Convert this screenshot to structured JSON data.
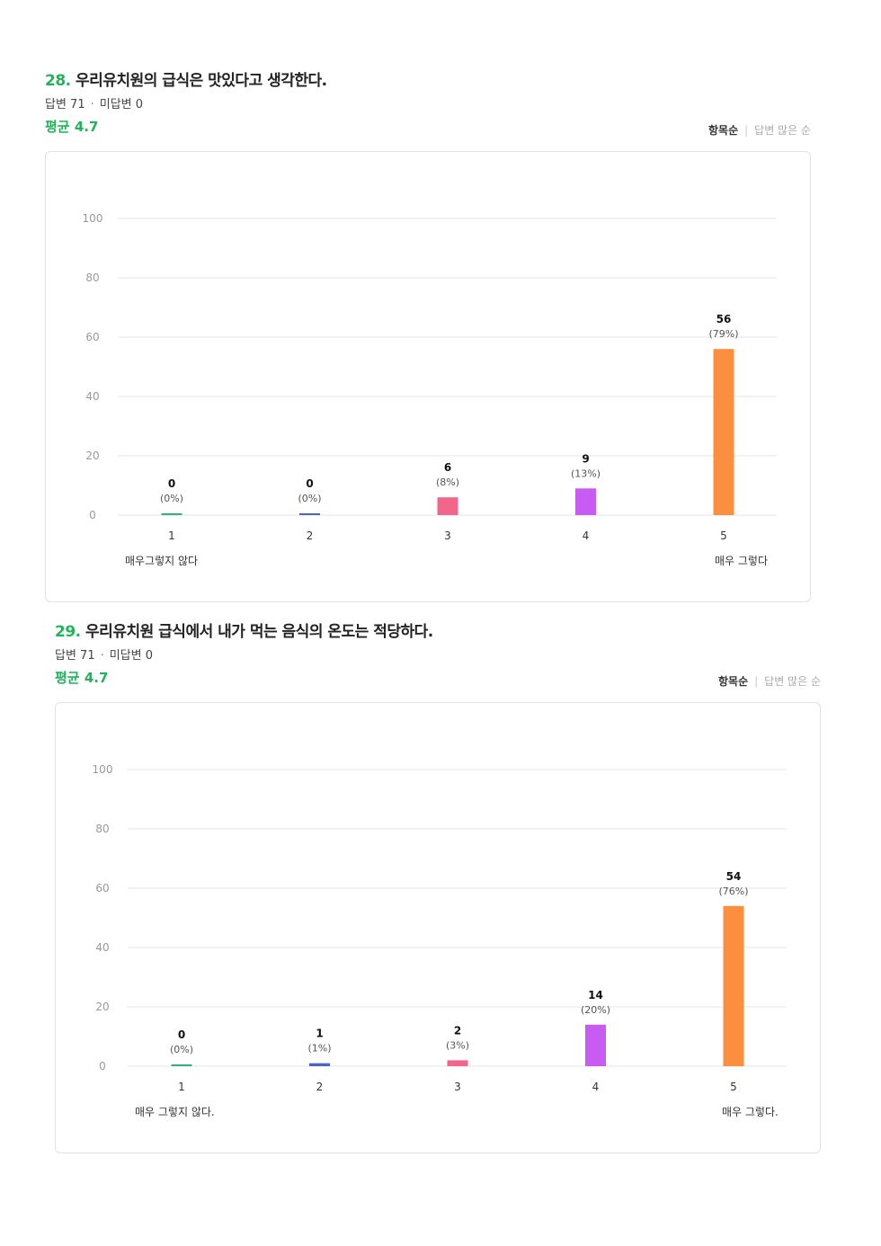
{
  "questions": [
    {
      "number": "28.",
      "title": "우리유치원의 급식은 맛있다고 생각한다.",
      "answered": "답변 71",
      "unanswered": "미답변 0",
      "average": "평균 4.7",
      "sort_active": "항목순",
      "sort_inactive": "답변 많은 순",
      "min_label": "매우그렇지 않다",
      "max_label": "매우 그렇다"
    },
    {
      "number": "29.",
      "title": "우리유치원 급식에서 내가 먹는 음식의 온도는 적당하다.",
      "answered": "답변 71",
      "unanswered": "미답변 0",
      "average": "평균 4.7",
      "sort_active": "항목순",
      "sort_inactive": "답변 많은 순",
      "min_label": "매우 그렇지 않다.",
      "max_label": "매우 그렇다."
    }
  ],
  "chart_data": [
    {
      "type": "bar",
      "categories": [
        "1",
        "2",
        "3",
        "4",
        "5"
      ],
      "values": [
        0,
        0,
        6,
        9,
        56
      ],
      "percent_labels": [
        "(0%)",
        "(0%)",
        "(8%)",
        "(13%)",
        "(79%)"
      ],
      "colors": [
        "#2db37a",
        "#4a63c9",
        "#f2668b",
        "#c85cf2",
        "#fb8f3f"
      ],
      "yticks": [
        0,
        20,
        40,
        60,
        80,
        100
      ],
      "ylim": [
        0,
        100
      ],
      "grid": true
    },
    {
      "type": "bar",
      "categories": [
        "1",
        "2",
        "3",
        "4",
        "5"
      ],
      "values": [
        0,
        1,
        2,
        14,
        54
      ],
      "percent_labels": [
        "(0%)",
        "(1%)",
        "(3%)",
        "(20%)",
        "(76%)"
      ],
      "colors": [
        "#2db37a",
        "#4a63c9",
        "#f2668b",
        "#c85cf2",
        "#fb8f3f"
      ],
      "yticks": [
        0,
        20,
        40,
        60,
        80,
        100
      ],
      "ylim": [
        0,
        100
      ],
      "grid": true
    }
  ]
}
